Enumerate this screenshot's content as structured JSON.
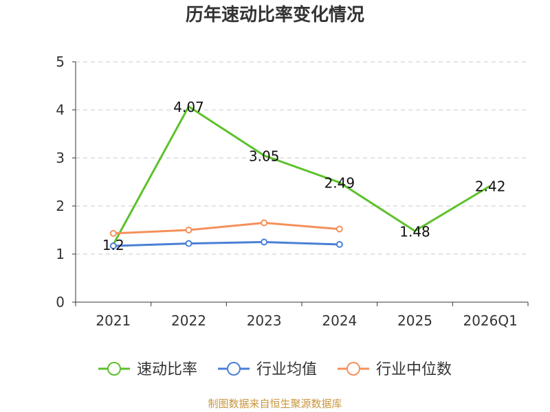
{
  "chart_data": {
    "type": "line",
    "title": "历年速动比率变化情况",
    "categories": [
      "2021",
      "2022",
      "2023",
      "2024",
      "2025",
      "2026Q1"
    ],
    "ylim": [
      0,
      5
    ],
    "yticks": [
      0,
      1,
      2,
      3,
      4,
      5
    ],
    "grid": true,
    "legend_position": "bottom",
    "series": [
      {
        "name": "速动比率",
        "color": "#5cc12a",
        "values": [
          1.2,
          4.07,
          3.05,
          2.49,
          1.48,
          2.42
        ],
        "labels": [
          "1.2",
          "4.07",
          "3.05",
          "2.49",
          "1.48",
          "2.42"
        ],
        "markers": false
      },
      {
        "name": "行业均值",
        "color": "#4a7fd6",
        "values": [
          1.17,
          1.22,
          1.25,
          1.2,
          null,
          null
        ],
        "markers": true
      },
      {
        "name": "行业中位数",
        "color": "#f5905a",
        "values": [
          1.43,
          1.5,
          1.65,
          1.52,
          null,
          null
        ],
        "markers": true
      }
    ]
  },
  "source": "制图数据来自恒生聚源数据库"
}
